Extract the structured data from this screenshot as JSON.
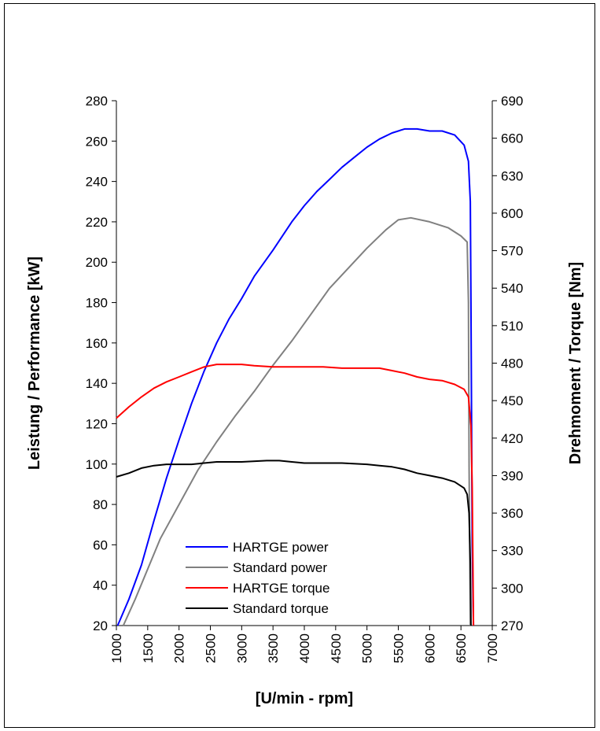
{
  "chart_data": {
    "type": "line",
    "title": "",
    "xlabel": "[U/min - rpm]",
    "ylabel": "Leistung / Performance [kW]",
    "y2label": "Drehmoment / Torque [Nm]",
    "xlim": [
      1000,
      7000
    ],
    "ylim": [
      20,
      280
    ],
    "y2lim": [
      270,
      690
    ],
    "x_ticks": [
      "1000",
      "1500",
      "2000",
      "2500",
      "3000",
      "3500",
      "4000",
      "4500",
      "5000",
      "5500",
      "6000",
      "6500",
      "7000"
    ],
    "y_ticks": [
      "20",
      "40",
      "60",
      "80",
      "100",
      "120",
      "140",
      "160",
      "180",
      "200",
      "220",
      "240",
      "260",
      "280"
    ],
    "y2_ticks": [
      "270",
      "300",
      "330",
      "360",
      "390",
      "420",
      "450",
      "480",
      "510",
      "540",
      "570",
      "600",
      "630",
      "660",
      "690"
    ],
    "grid": false,
    "legend_position": "bottom-left",
    "series": [
      {
        "name": "HARTGE power",
        "axis": "left",
        "color": "#0000ff",
        "points": [
          [
            1020,
            20
          ],
          [
            1200,
            33
          ],
          [
            1400,
            50
          ],
          [
            1600,
            72
          ],
          [
            1800,
            93
          ],
          [
            2000,
            112
          ],
          [
            2200,
            130
          ],
          [
            2400,
            146
          ],
          [
            2600,
            160
          ],
          [
            2800,
            172
          ],
          [
            3000,
            182
          ],
          [
            3200,
            193
          ],
          [
            3500,
            206
          ],
          [
            3800,
            220
          ],
          [
            4000,
            228
          ],
          [
            4200,
            235
          ],
          [
            4400,
            241
          ],
          [
            4600,
            247
          ],
          [
            4800,
            252
          ],
          [
            5000,
            257
          ],
          [
            5200,
            261
          ],
          [
            5400,
            264
          ],
          [
            5600,
            266
          ],
          [
            5800,
            266
          ],
          [
            6000,
            265
          ],
          [
            6200,
            265
          ],
          [
            6400,
            263
          ],
          [
            6550,
            258
          ],
          [
            6620,
            250
          ],
          [
            6650,
            230
          ],
          [
            6660,
            180
          ],
          [
            6680,
            60
          ],
          [
            6700,
            20
          ]
        ]
      },
      {
        "name": "Standard power",
        "axis": "left",
        "color": "#808080",
        "points": [
          [
            1110,
            20
          ],
          [
            1300,
            33
          ],
          [
            1500,
            48
          ],
          [
            1700,
            63
          ],
          [
            2000,
            80
          ],
          [
            2300,
            97
          ],
          [
            2600,
            111
          ],
          [
            2900,
            124
          ],
          [
            3200,
            136
          ],
          [
            3500,
            149
          ],
          [
            3800,
            161
          ],
          [
            4100,
            174
          ],
          [
            4400,
            187
          ],
          [
            4700,
            197
          ],
          [
            5000,
            207
          ],
          [
            5300,
            216
          ],
          [
            5500,
            221
          ],
          [
            5700,
            222
          ],
          [
            6000,
            220
          ],
          [
            6300,
            217
          ],
          [
            6500,
            213
          ],
          [
            6600,
            210
          ],
          [
            6620,
            180
          ],
          [
            6630,
            100
          ],
          [
            6650,
            20
          ]
        ]
      },
      {
        "name": "HARTGE torque",
        "axis": "right",
        "color": "#ff0000",
        "points": [
          [
            1000,
            436
          ],
          [
            1200,
            445
          ],
          [
            1400,
            453
          ],
          [
            1600,
            460
          ],
          [
            1800,
            465
          ],
          [
            2000,
            469
          ],
          [
            2200,
            473
          ],
          [
            2400,
            477
          ],
          [
            2600,
            479
          ],
          [
            2800,
            479
          ],
          [
            3000,
            479
          ],
          [
            3200,
            478
          ],
          [
            3500,
            477
          ],
          [
            3800,
            477
          ],
          [
            4000,
            477
          ],
          [
            4300,
            477
          ],
          [
            4600,
            476
          ],
          [
            5000,
            476
          ],
          [
            5200,
            476
          ],
          [
            5400,
            474
          ],
          [
            5600,
            472
          ],
          [
            5800,
            469
          ],
          [
            6000,
            467
          ],
          [
            6200,
            466
          ],
          [
            6400,
            463
          ],
          [
            6550,
            459
          ],
          [
            6620,
            453
          ],
          [
            6660,
            430
          ],
          [
            6680,
            380
          ],
          [
            6700,
            270
          ]
        ]
      },
      {
        "name": "Standard torque",
        "axis": "right",
        "color": "#000000",
        "points": [
          [
            1000,
            389
          ],
          [
            1200,
            392
          ],
          [
            1400,
            396
          ],
          [
            1600,
            398
          ],
          [
            1800,
            399
          ],
          [
            2000,
            399
          ],
          [
            2200,
            399
          ],
          [
            2400,
            400
          ],
          [
            2600,
            401
          ],
          [
            3000,
            401
          ],
          [
            3400,
            402
          ],
          [
            3600,
            402
          ],
          [
            3800,
            401
          ],
          [
            4000,
            400
          ],
          [
            4300,
            400
          ],
          [
            4600,
            400
          ],
          [
            5000,
            399
          ],
          [
            5200,
            398
          ],
          [
            5400,
            397
          ],
          [
            5600,
            395
          ],
          [
            5800,
            392
          ],
          [
            6000,
            390
          ],
          [
            6200,
            388
          ],
          [
            6400,
            385
          ],
          [
            6550,
            380
          ],
          [
            6600,
            375
          ],
          [
            6630,
            360
          ],
          [
            6650,
            320
          ],
          [
            6660,
            270
          ]
        ]
      }
    ]
  }
}
